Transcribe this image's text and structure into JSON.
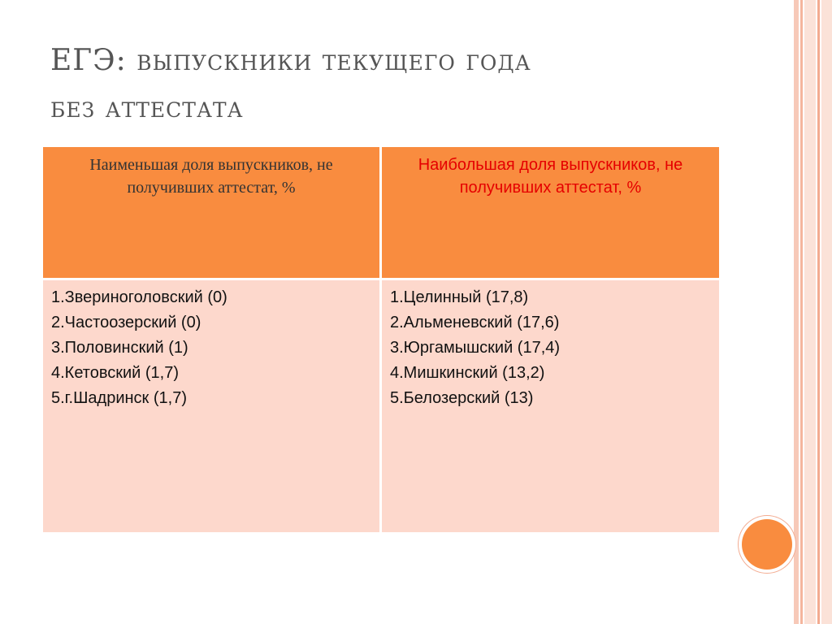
{
  "slide": {
    "title_line1_prefix": "ЕГЭ: ",
    "title_line1_rest": "выпускники текущего года",
    "title_line2": "без аттестата"
  },
  "table": {
    "header_left": "Наименьшая доля выпускников, не получивших аттестат, %",
    "header_right": "Наибольшая доля выпускников, не получивших аттестат, %",
    "left_items": [
      "1.Звериноголовский (0)",
      "2.Частоозерский (0)",
      "3.Половинский (1)",
      "4.Кетовский (1,7)",
      "5.г.Шадринск (1,7)"
    ],
    "right_items": [
      "1.Целинный (17,8)",
      "2.Альменевский (17,6)",
      "3.Юргамышский (17,4)",
      "4.Мишкинский (13,2)",
      "5.Белозерский (13)"
    ]
  },
  "colors": {
    "header_bg": "#f98c3f",
    "body_bg": "#fdd8cc",
    "right_header_text": "#e50000",
    "title_text": "#555555"
  },
  "chart_data": {
    "type": "table",
    "columns": [
      "Наименьшая доля выпускников, не получивших аттестат, %",
      "Наибольшая доля выпускников, не получивших аттестат, %"
    ],
    "rows": [
      [
        "1.Звериноголовский (0)",
        "1.Целинный (17,8)"
      ],
      [
        "2.Частоозерский (0)",
        "2.Альменевский (17,6)"
      ],
      [
        "3.Половинский (1)",
        "3.Юргамышский (17,4)"
      ],
      [
        "4.Кетовский (1,7)",
        "4.Мишкинский (13,2)"
      ],
      [
        "5.г.Шадринск (1,7)",
        "5.Белозерский (13)"
      ]
    ]
  }
}
